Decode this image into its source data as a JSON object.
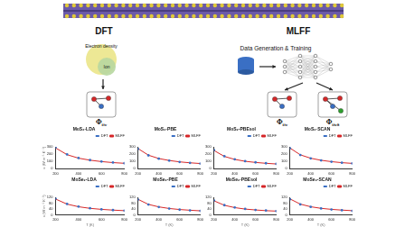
{
  "diagram": {
    "left_title": "DFT",
    "right_title": "MLFF",
    "venn": [
      "Electron density",
      "Ion"
    ],
    "left_output": {
      "symbol": "Φ",
      "subscript": "ijγ"
    },
    "right_caption": "Data Generation & Training",
    "right_outputs": [
      {
        "symbol": "Φ",
        "subscript": "ijγ"
      },
      {
        "symbol": "Φ",
        "subscript": "ijγδ"
      }
    ]
  },
  "chart_data": [
    {
      "type": "line",
      "title": "MoS₂-LDA",
      "ylabel": "κ (W m⁻¹ K⁻¹)",
      "x": [
        200,
        300,
        400,
        500,
        600,
        700,
        800
      ],
      "xlim": [
        200,
        800
      ],
      "xticks": [
        200,
        400,
        600,
        800
      ],
      "ylim": [
        0,
        300
      ],
      "yticks": [
        0,
        100,
        200,
        300
      ],
      "legend": "top-right",
      "series": [
        {
          "name": "DFT",
          "color": "#3a6fc4",
          "marker": "circle",
          "line_style": "none",
          "values": [
            290,
            195,
            146,
            117,
            98,
            84,
            74
          ]
        },
        {
          "name": "MLFF",
          "color": "#d62728",
          "marker": "none",
          "line_style": "solid",
          "values": [
            285,
            192,
            144,
            116,
            97,
            83,
            73
          ]
        }
      ]
    },
    {
      "type": "line",
      "title": "MoS₂-PBE",
      "x": [
        200,
        300,
        400,
        500,
        600,
        700,
        800
      ],
      "xlim": [
        200,
        800
      ],
      "xticks": [
        200,
        400,
        600,
        800
      ],
      "ylim": [
        0,
        300
      ],
      "yticks": [
        0,
        100,
        200,
        300
      ],
      "legend": "top-right",
      "series": [
        {
          "name": "DFT",
          "color": "#3a6fc4",
          "marker": "circle",
          "line_style": "none",
          "values": [
            270,
            182,
            137,
            110,
            92,
            79,
            69
          ]
        },
        {
          "name": "MLFF",
          "color": "#d62728",
          "marker": "none",
          "line_style": "solid",
          "values": [
            276,
            185,
            139,
            112,
            93,
            80,
            70
          ]
        }
      ]
    },
    {
      "type": "line",
      "title": "MoS₂-PBEsol",
      "x": [
        200,
        300,
        400,
        500,
        600,
        700,
        800
      ],
      "xlim": [
        200,
        800
      ],
      "xticks": [
        200,
        400,
        600,
        800
      ],
      "ylim": [
        0,
        300
      ],
      "yticks": [
        0,
        100,
        200,
        300
      ],
      "legend": "top-right",
      "series": [
        {
          "name": "DFT",
          "color": "#3a6fc4",
          "marker": "circle",
          "line_style": "none",
          "values": [
            255,
            171,
            129,
            103,
            86,
            74,
            65
          ]
        },
        {
          "name": "MLFF",
          "color": "#d62728",
          "marker": "none",
          "line_style": "solid",
          "values": [
            250,
            168,
            127,
            101,
            85,
            73,
            64
          ]
        }
      ]
    },
    {
      "type": "line",
      "title": "MoS₂-SCAN",
      "x": [
        200,
        300,
        400,
        500,
        600,
        700,
        800
      ],
      "xlim": [
        200,
        800
      ],
      "xticks": [
        200,
        400,
        600,
        800
      ],
      "ylim": [
        0,
        300
      ],
      "yticks": [
        0,
        100,
        200,
        300
      ],
      "legend": "top-right",
      "series": [
        {
          "name": "DFT",
          "color": "#3a6fc4",
          "marker": "circle",
          "line_style": "none",
          "values": [
            280,
            188,
            141,
            113,
            95,
            81,
            71
          ]
        },
        {
          "name": "MLFF",
          "color": "#d62728",
          "marker": "none",
          "line_style": "solid",
          "values": [
            284,
            190,
            143,
            115,
            96,
            82,
            72
          ]
        }
      ]
    },
    {
      "type": "line",
      "title": "MoSe₂-LDA",
      "ylabel": "κ (W m⁻¹ K⁻¹)",
      "xlabel": "T (K)",
      "x": [
        200,
        300,
        400,
        500,
        600,
        700,
        800
      ],
      "xlim": [
        200,
        800
      ],
      "xticks": [
        200,
        400,
        600,
        800
      ],
      "ylim": [
        0,
        120
      ],
      "yticks": [
        0,
        40,
        80,
        120
      ],
      "legend": "top-right",
      "series": [
        {
          "name": "DFT",
          "color": "#3a6fc4",
          "marker": "circle",
          "line_style": "none",
          "values": [
            110,
            74,
            56,
            45,
            37,
            32,
            28
          ]
        },
        {
          "name": "MLFF",
          "color": "#d62728",
          "marker": "none",
          "line_style": "solid",
          "values": [
            108,
            73,
            55,
            44,
            37,
            32,
            28
          ]
        }
      ]
    },
    {
      "type": "line",
      "title": "MoSe₂-PBE",
      "xlabel": "T (K)",
      "x": [
        200,
        300,
        400,
        500,
        600,
        700,
        800
      ],
      "xlim": [
        200,
        800
      ],
      "xticks": [
        200,
        400,
        600,
        800
      ],
      "ylim": [
        0,
        120
      ],
      "yticks": [
        0,
        40,
        80,
        120
      ],
      "legend": "top-right",
      "series": [
        {
          "name": "DFT",
          "color": "#3a6fc4",
          "marker": "circle",
          "line_style": "none",
          "values": [
            104,
            70,
            53,
            42,
            35,
            30,
            27
          ]
        },
        {
          "name": "MLFF",
          "color": "#d62728",
          "marker": "none",
          "line_style": "solid",
          "values": [
            106,
            71,
            54,
            43,
            36,
            31,
            27
          ]
        }
      ]
    },
    {
      "type": "line",
      "title": "MoSe₂-PBEsol",
      "xlabel": "T (K)",
      "x": [
        200,
        300,
        400,
        500,
        600,
        700,
        800
      ],
      "xlim": [
        200,
        800
      ],
      "xticks": [
        200,
        400,
        600,
        800
      ],
      "ylim": [
        0,
        120
      ],
      "yticks": [
        0,
        40,
        80,
        120
      ],
      "legend": "top-right",
      "series": [
        {
          "name": "DFT",
          "color": "#3a6fc4",
          "marker": "circle",
          "line_style": "none",
          "values": [
            98,
            66,
            50,
            40,
            33,
            29,
            25
          ]
        },
        {
          "name": "MLFF",
          "color": "#d62728",
          "marker": "none",
          "line_style": "solid",
          "values": [
            96,
            65,
            49,
            39,
            33,
            28,
            25
          ]
        }
      ]
    },
    {
      "type": "line",
      "title": "MoSe₂-SCAN",
      "xlabel": "T (K)",
      "x": [
        200,
        300,
        400,
        500,
        600,
        700,
        800
      ],
      "xlim": [
        200,
        800
      ],
      "xticks": [
        200,
        400,
        600,
        800
      ],
      "ylim": [
        0,
        120
      ],
      "yticks": [
        0,
        40,
        80,
        120
      ],
      "legend": "top-right",
      "series": [
        {
          "name": "DFT",
          "color": "#3a6fc4",
          "marker": "circle",
          "line_style": "none",
          "values": [
            106,
            71,
            54,
            43,
            36,
            31,
            27
          ]
        },
        {
          "name": "MLFF",
          "color": "#d62728",
          "marker": "none",
          "line_style": "solid",
          "values": [
            109,
            73,
            55,
            44,
            37,
            32,
            28
          ]
        }
      ]
    }
  ]
}
